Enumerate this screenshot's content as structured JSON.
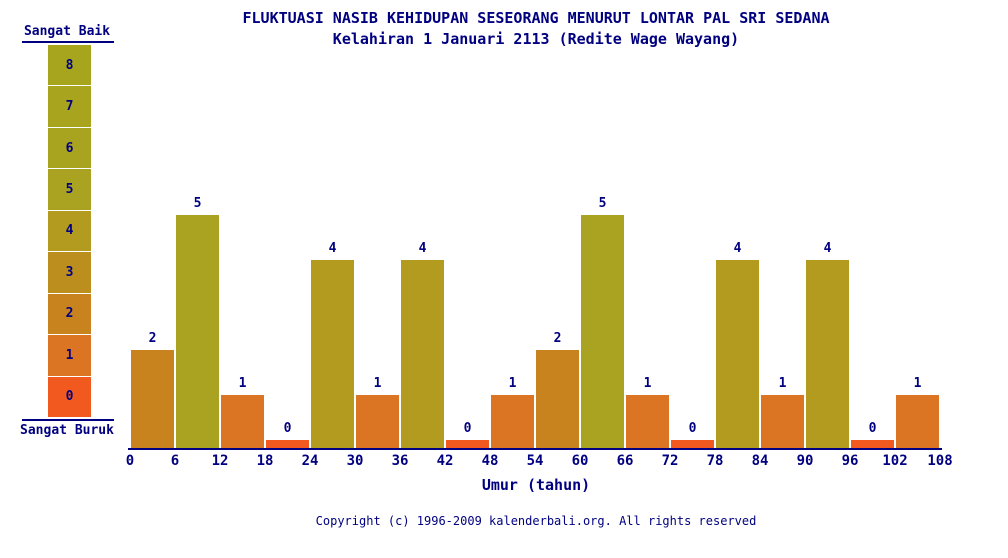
{
  "header": {
    "title": "FLUKTUASI NASIB KEHIDUPAN SESEORANG MENURUT LONTAR PAL SRI SEDANA",
    "subtitle": "Kelahiran 1 Januari 2113 (Redite Wage Wayang)"
  },
  "legend": {
    "top_label": "Sangat Baik",
    "bottom_label": "Sangat Buruk",
    "scale_top_to_bottom": [
      8,
      7,
      6,
      5,
      4,
      3,
      2,
      1,
      0
    ]
  },
  "chart_data": {
    "type": "bar",
    "title": "FLUKTUASI NASIB KEHIDUPAN SESEORANG MENURUT LONTAR PAL SRI SEDANA",
    "subtitle": "Kelahiran 1 Januari 2113 (Redite Wage Wayang)",
    "xlabel": "Umur (tahun)",
    "ylabel": "",
    "ylim": [
      0,
      8
    ],
    "bar_width_years": 6,
    "x_ticks": [
      0,
      6,
      12,
      18,
      24,
      30,
      36,
      42,
      48,
      54,
      60,
      66,
      72,
      78,
      84,
      90,
      96,
      102,
      108
    ],
    "values": [
      2,
      5,
      1,
      0,
      4,
      1,
      4,
      0,
      1,
      2,
      5,
      1,
      0,
      4,
      1,
      4,
      0,
      1
    ],
    "value_labels_shown": true,
    "legend_position": "left",
    "grid": false
  },
  "colors": {
    "text": "#000080",
    "axis": "#000080",
    "background": "#ffffff",
    "scale_colors_by_value": [
      "#F1591F",
      "#DC7523",
      "#C8831F",
      "#BC8E1D",
      "#B29B1E",
      "#AAA321",
      "#A9A41F",
      "#A8A41E",
      "#A7A51E"
    ]
  },
  "footer": {
    "copyright": "Copyright (c) 1996-2009 kalenderbali.org. All rights reserved"
  }
}
